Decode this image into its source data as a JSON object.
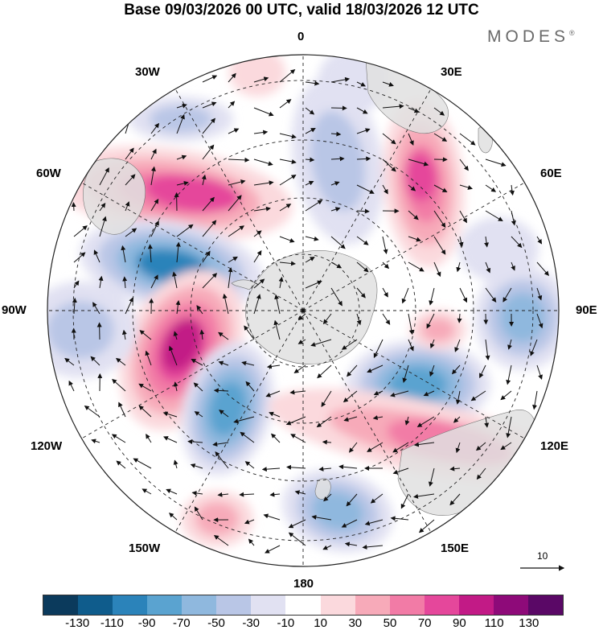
{
  "title": "Base 09/03/2026 00 UTC, valid 18/03/2026 12 UTC",
  "brand": "MODES",
  "brand_mark": "®",
  "longitude_labels": {
    "n0": "0",
    "e30": "30E",
    "e60": "60E",
    "e90": "90E",
    "e120": "120E",
    "e150": "150E",
    "s180": "180",
    "w150": "150W",
    "w120": "120W",
    "w90": "90W",
    "w60": "60W",
    "w30": "30W"
  },
  "reference_vector_label": "10",
  "colorbar": {
    "colors": [
      "#0b3a5c",
      "#0f5c8c",
      "#2b83ba",
      "#5aa3d0",
      "#8fb8de",
      "#b9c6e6",
      "#e1e1f2",
      "#ffffff",
      "#fbd9dd",
      "#f7aab9",
      "#f27ba6",
      "#e5479b",
      "#c21a86",
      "#8e0a79",
      "#5a0866"
    ],
    "ticks": [
      "-130",
      "-110",
      "-90",
      "-70",
      "-50",
      "-30",
      "-10",
      "10",
      "30",
      "50",
      "70",
      "90",
      "110",
      "130"
    ]
  },
  "anomaly_colors": {
    "neg_strong": "#2b83ba",
    "neg_mid": "#5aa3d0",
    "neg_light": "#8fb8de",
    "neg_faint": "#b9c6e6",
    "neg_ghost": "#e1e1f2",
    "pos_ghost": "#fbd9dd",
    "pos_light": "#f7aab9",
    "pos_mid": "#f27ba6",
    "pos_strong": "#e5479b",
    "pos_max": "#c21a86",
    "land": "#e0e0e0"
  }
}
